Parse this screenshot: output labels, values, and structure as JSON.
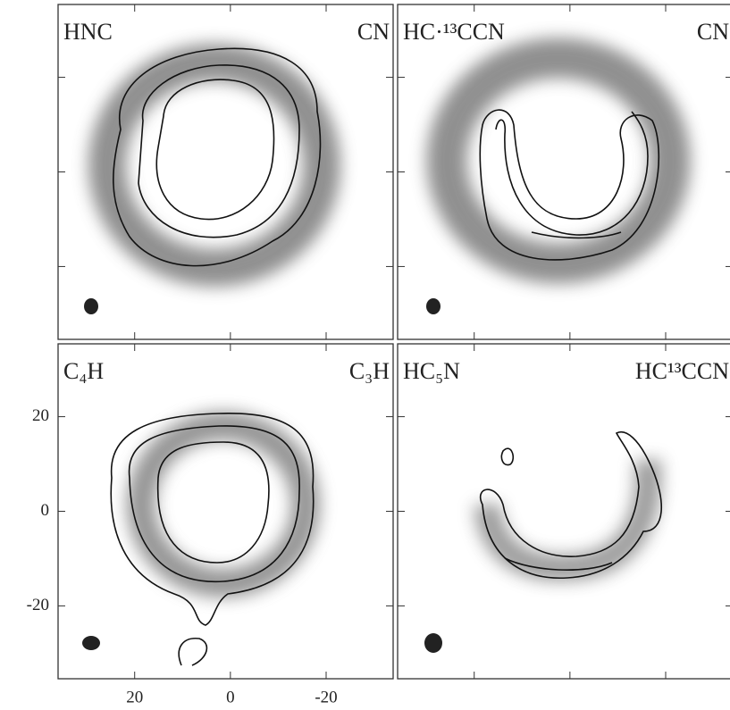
{
  "axes": {
    "xlim": [
      36,
      -34
    ],
    "ylim": [
      -35.4,
      35.4
    ],
    "xticks": [
      20,
      0,
      -20
    ],
    "yticks": [
      20,
      0,
      -20
    ]
  },
  "panels": [
    {
      "label": "HNC",
      "label_right": "CN"
    },
    {
      "label": "HC·¹³CCN",
      "label_right": "CN"
    },
    {
      "label": "C₄H",
      "label_right": "C₃H"
    },
    {
      "label": "HC₅N",
      "label_right": "HC¹³CCN"
    }
  ]
}
